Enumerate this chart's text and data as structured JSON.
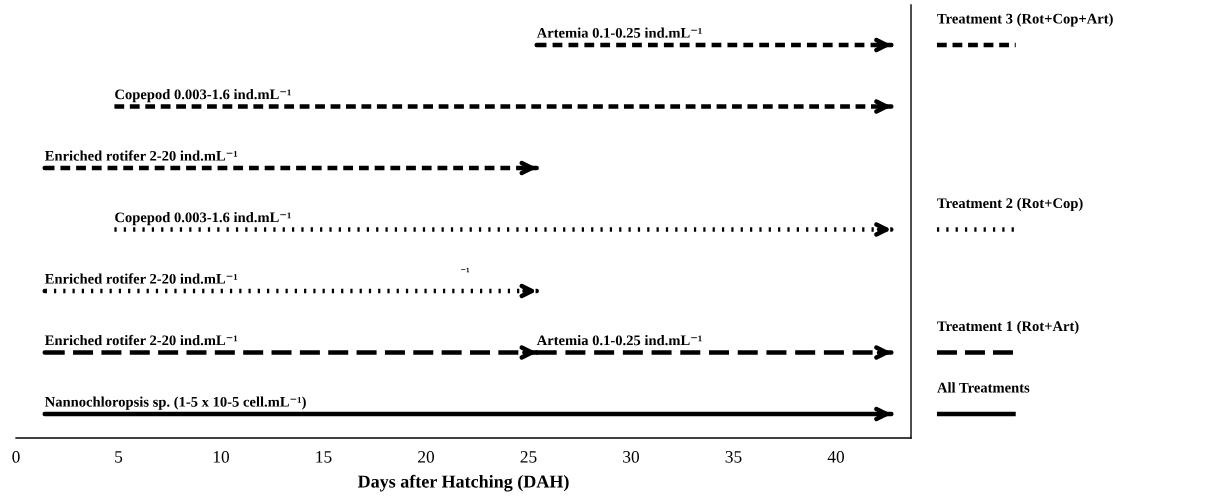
{
  "chart_data": {
    "type": "bar",
    "orientation": "horizontal",
    "xlabel": "Days after Hatching (DAH)",
    "categories": [
      null,
      null,
      null,
      null,
      null,
      null,
      null
    ],
    "xlim": [
      0,
      43.66
    ],
    "xticks": [
      0,
      5,
      10,
      15,
      20,
      25,
      30,
      35,
      40
    ],
    "legend": "right",
    "annotations": [
      "⁻¹"
    ],
    "series": [
      {
        "name": "Treatment 3 (Rot+Cop+Art)",
        "color": "#000000",
        "line_style": "dashed",
        "values": [
          17.3,
          37.9,
          24,
          null,
          null,
          null,
          null
        ],
        "base": [
          25.4,
          4.8,
          1.4,
          null,
          null,
          null,
          null
        ],
        "value_labels": [
          "Artemia 0.1-0.25 ind.mL⁻¹",
          "Copepod 0.003-1.6 ind.mL⁻¹",
          "Enriched rotifer 2-20 ind.mL⁻¹",
          null,
          null,
          null,
          null
        ]
      },
      {
        "name": "Treatment 2 (Rot+Cop)",
        "color": "#000000",
        "line_style": "dotted",
        "values": [
          null,
          null,
          null,
          37.9,
          24,
          null,
          null
        ],
        "base": [
          null,
          null,
          null,
          4.8,
          1.4,
          null,
          null
        ],
        "value_labels": [
          null,
          null,
          null,
          "Copepod 0.003-1.6 ind.mL⁻¹",
          "Enriched rotifer 2-20 ind.mL⁻¹",
          null,
          null
        ]
      },
      {
        "name": "Treatment 1 (Rot+Art)",
        "color": "#000000",
        "line_style": "long dashed",
        "values": [
          null,
          null,
          null,
          null,
          null,
          24,
          null
        ],
        "base": [
          null,
          null,
          null,
          null,
          null,
          1.4,
          null
        ],
        "value_labels": [
          null,
          null,
          null,
          null,
          null,
          "Enriched rotifer 2-20 ind.mL⁻¹",
          null
        ]
      },
      {
        "color": "#000000",
        "line_style": "long dashed",
        "values": [
          null,
          null,
          null,
          null,
          null,
          17.3,
          null
        ],
        "base": [
          null,
          null,
          null,
          null,
          null,
          25.4,
          null
        ],
        "value_labels": [
          null,
          null,
          null,
          null,
          null,
          "Artemia 0.1-0.25 ind.mL⁻¹",
          null
        ]
      },
      {
        "name": "All Treatments",
        "color": "#000000",
        "line_style": "solid",
        "values": [
          null,
          null,
          null,
          null,
          null,
          null,
          41.3
        ],
        "base": [
          null,
          null,
          null,
          null,
          null,
          null,
          1.4
        ],
        "value_labels": [
          null,
          null,
          null,
          null,
          null,
          null,
          "Nannochloropsis sp. (1-5 x 10-5 cell.mL⁻¹)"
        ]
      }
    ]
  }
}
